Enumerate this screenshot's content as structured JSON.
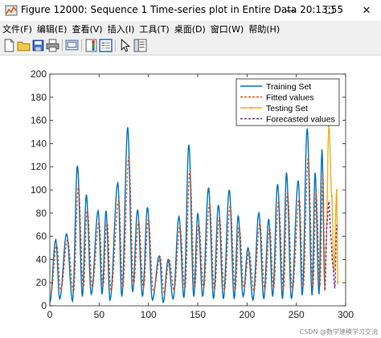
{
  "window": {
    "title": "Figure 12000: Sequence 1  Time-series plot in Entire Data 20:13:55",
    "minimize_glyph": "—",
    "maximize_glyph": "☐",
    "close_glyph": "✕"
  },
  "menu": {
    "items": [
      "文件(F)",
      "编辑(E)",
      "查看(V)",
      "插入(I)",
      "工具(T)",
      "桌面(D)",
      "窗口(W)",
      "帮助(H)"
    ]
  },
  "toolbar": {
    "buttons": [
      "new-figure-icon",
      "open-file-icon",
      "save-icon",
      "print-icon",
      "link-plot-icon",
      "insert-colorbar-icon",
      "insert-legend-icon",
      "pointer-icon",
      "property-inspector-icon"
    ]
  },
  "colors": {
    "training": "#0072BD",
    "fitted": "#D95319",
    "testing": "#EDB120",
    "forecast": "#7E2F8E"
  },
  "watermark": "CSDN @数学建模学习交流",
  "chart_data": {
    "type": "line",
    "title": "",
    "xlabel": "",
    "ylabel": "",
    "xlim": [
      0,
      300
    ],
    "ylim": [
      0,
      200
    ],
    "xticks": [
      0,
      50,
      100,
      150,
      200,
      250,
      300
    ],
    "yticks": [
      0,
      20,
      40,
      60,
      80,
      100,
      120,
      140,
      160,
      180,
      200
    ],
    "grid": false,
    "legend_position": "top-right",
    "legend": [
      "Training Set",
      "Fitted values",
      "Testing Set",
      "Forecasted values"
    ],
    "training_peaks": [
      [
        0,
        3
      ],
      [
        6,
        57
      ],
      [
        10,
        6
      ],
      [
        17,
        62
      ],
      [
        23,
        4
      ],
      [
        28,
        121
      ],
      [
        33,
        8
      ],
      [
        37,
        96
      ],
      [
        42,
        10
      ],
      [
        49,
        82
      ],
      [
        53,
        10
      ],
      [
        57,
        82
      ],
      [
        61,
        5
      ],
      [
        69,
        106
      ],
      [
        73,
        8
      ],
      [
        79,
        154
      ],
      [
        84,
        12
      ],
      [
        89,
        83
      ],
      [
        94,
        8
      ],
      [
        99,
        85
      ],
      [
        104,
        5
      ],
      [
        111,
        43
      ],
      [
        115,
        3
      ],
      [
        120,
        40
      ],
      [
        125,
        6
      ],
      [
        131,
        77
      ],
      [
        136,
        7
      ],
      [
        141,
        139
      ],
      [
        146,
        8
      ],
      [
        150,
        80
      ],
      [
        155,
        8
      ],
      [
        161,
        102
      ],
      [
        166,
        6
      ],
      [
        171,
        87
      ],
      [
        176,
        6
      ],
      [
        182,
        100
      ],
      [
        187,
        6
      ],
      [
        191,
        78
      ],
      [
        196,
        8
      ],
      [
        201,
        50
      ],
      [
        206,
        5
      ],
      [
        212,
        80
      ],
      [
        217,
        6
      ],
      [
        222,
        75
      ],
      [
        226,
        8
      ],
      [
        231,
        105
      ],
      [
        236,
        6
      ],
      [
        240,
        115
      ],
      [
        245,
        6
      ],
      [
        252,
        108
      ],
      [
        256,
        9
      ],
      [
        261,
        153
      ],
      [
        266,
        9
      ],
      [
        269,
        115
      ],
      [
        273,
        10
      ],
      [
        276,
        135
      ],
      [
        279,
        14
      ]
    ],
    "testing_peaks": [
      [
        279,
        14
      ],
      [
        280,
        50
      ],
      [
        283,
        155
      ],
      [
        286,
        95
      ],
      [
        288,
        30
      ],
      [
        291,
        100
      ],
      [
        292,
        20
      ]
    ],
    "forecast_peaks": [
      [
        279,
        14
      ],
      [
        281,
        70
      ],
      [
        283,
        90
      ],
      [
        285,
        60
      ],
      [
        287,
        35
      ],
      [
        289,
        15
      ],
      [
        291,
        70
      ]
    ]
  }
}
